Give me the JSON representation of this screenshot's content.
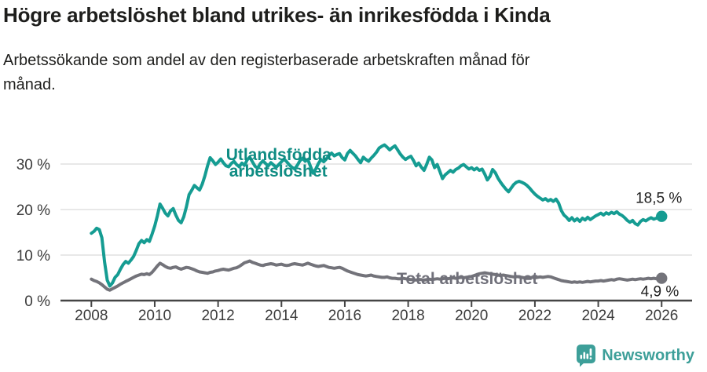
{
  "header": {
    "title": "Högre arbetslöshet bland utrikes- än inrikesfödda i Kinda",
    "subtitle": "Arbetssökande som andel av den registerbaserade arbetskraften månad för månad."
  },
  "footer": {
    "brand": "Newsworthy",
    "brand_color": "#3d9f99",
    "logo_icon": "speech-bubble-with-bar-chart-and-exclamation"
  },
  "chart_data": {
    "type": "line",
    "title": "Högre arbetslöshet bland utrikes- än inrikesfödda i Kinda",
    "subtitle": "Arbetssökande som andel av den registerbaserade arbetskraften månad för månad.",
    "x_axis": {
      "ticks": [
        2008,
        2010,
        2012,
        2014,
        2016,
        2018,
        2020,
        2022,
        2024,
        2026
      ],
      "tick_labels": [
        "2008",
        "2010",
        "2012",
        "2014",
        "2016",
        "2018",
        "2020",
        "2022",
        "2024",
        "2026"
      ],
      "range": [
        2007.0,
        2027.0
      ]
    },
    "y_axis": {
      "unit": "%",
      "ticks": [
        0,
        10,
        20,
        30
      ],
      "tick_labels": [
        "0 %",
        "10 %",
        "20 %",
        "30 %"
      ],
      "range": [
        0,
        34.8
      ],
      "grid": true
    },
    "style": {
      "grid_color": "#dadada",
      "axis_color": "#454545",
      "tick_label_color": "#3b3b3b",
      "end_label_color": "#1f1f1f",
      "line_width": 4
    },
    "series": [
      {
        "id": "utlandsfodda",
        "name": "Utlandsfödda arbetslöshet",
        "color": "#159c92",
        "label_color": "#0f8c83",
        "inline_label": {
          "lines": [
            "Utlandsfödda",
            "arbetslöshet"
          ],
          "year": 2012.25,
          "value": 30.9,
          "line2_dx": 4,
          "line2_hidden_behind_line": true
        },
        "end_value": 18.5,
        "end_label": "18,5 %",
        "end_label_offset": [
          26,
          -17
        ],
        "x_start": 2008,
        "x_step_years": 0.083333,
        "values": [
          14.8,
          15.2,
          15.9,
          15.6,
          13.8,
          8.5,
          4.5,
          3.2,
          3.9,
          5.1,
          5.7,
          6.9,
          7.9,
          8.6,
          8.2,
          8.9,
          9.7,
          11.0,
          12.5,
          13.2,
          12.7,
          13.4,
          13.0,
          14.6,
          16.4,
          18.6,
          21.2,
          20.3,
          19.2,
          18.6,
          19.7,
          20.2,
          18.8,
          17.6,
          17.1,
          18.4,
          20.6,
          23.3,
          24.2,
          25.3,
          24.8,
          24.3,
          25.6,
          27.4,
          29.6,
          31.4,
          30.7,
          29.9,
          30.4,
          31.1,
          30.3,
          29.6,
          29.4,
          30.1,
          30.6,
          29.9,
          29.4,
          30.2,
          29.7,
          30.9,
          31.5,
          30.5,
          29.5,
          29.1,
          30.1,
          30.7,
          30.1,
          29.6,
          30.3,
          29.8,
          29.3,
          29.9,
          30.5,
          31.1,
          30.5,
          29.8,
          29.3,
          28.9,
          29.7,
          30.7,
          31.3,
          30.6,
          31.0,
          29.5,
          28.0,
          28.9,
          30.1,
          31.0,
          30.5,
          31.1,
          31.9,
          32.4,
          31.8,
          32.1,
          32.3,
          31.4,
          30.9,
          32.3,
          33.0,
          32.4,
          31.8,
          31.0,
          30.3,
          31.5,
          31.0,
          30.6,
          31.3,
          31.9,
          32.6,
          33.5,
          33.9,
          34.2,
          33.7,
          33.1,
          33.6,
          34.0,
          33.1,
          32.2,
          31.5,
          31.0,
          31.4,
          31.7,
          30.8,
          29.6,
          30.2,
          29.3,
          28.6,
          29.9,
          31.5,
          30.9,
          29.2,
          29.9,
          28.4,
          26.8,
          27.6,
          28.1,
          28.6,
          28.2,
          28.8,
          29.1,
          29.6,
          29.9,
          29.4,
          28.9,
          29.2,
          28.7,
          29.1,
          28.6,
          28.9,
          27.8,
          26.5,
          27.3,
          28.8,
          28.1,
          26.9,
          26.0,
          25.2,
          24.5,
          23.9,
          24.7,
          25.5,
          26.0,
          26.2,
          26.0,
          25.7,
          25.3,
          24.7,
          24.0,
          23.4,
          22.9,
          22.5,
          22.1,
          22.4,
          21.9,
          22.2,
          21.8,
          22.3,
          21.4,
          19.8,
          18.8,
          18.3,
          17.6,
          18.2,
          17.5,
          18.0,
          17.4,
          18.1,
          17.7,
          18.3,
          17.8,
          18.2,
          18.6,
          18.9,
          19.2,
          18.8,
          19.3,
          19.0,
          19.4,
          19.1,
          19.5,
          19.0,
          18.7,
          18.2,
          17.6,
          17.2,
          17.6,
          16.9,
          16.6,
          17.4,
          17.8,
          17.5,
          17.9,
          18.2,
          17.9,
          18.1,
          18.3,
          18.5
        ]
      },
      {
        "id": "total",
        "name": "Total arbetslöshet",
        "color": "#73737a",
        "label_color": "#70707a",
        "inline_label": {
          "lines": [
            "Total arbetslöshet"
          ],
          "year": 2017.64,
          "value": 3.62,
          "line2_dx": 0,
          "line2_hidden_behind_line": false
        },
        "end_value": 4.9,
        "end_label": "4,9 %",
        "end_label_offset": [
          22,
          23
        ],
        "x_start": 2008,
        "x_step_years": 0.083333,
        "values": [
          4.7,
          4.4,
          4.2,
          3.9,
          3.5,
          3.0,
          2.5,
          2.3,
          2.6,
          2.9,
          3.2,
          3.6,
          3.9,
          4.2,
          4.5,
          4.8,
          5.1,
          5.4,
          5.6,
          5.8,
          5.7,
          5.9,
          5.7,
          6.2,
          6.9,
          7.6,
          8.2,
          7.9,
          7.5,
          7.2,
          7.1,
          7.3,
          7.4,
          7.1,
          6.9,
          7.1,
          7.3,
          7.2,
          7.0,
          6.8,
          6.5,
          6.3,
          6.2,
          6.1,
          6.0,
          6.2,
          6.3,
          6.5,
          6.6,
          6.8,
          6.9,
          6.8,
          6.7,
          6.9,
          7.1,
          7.2,
          7.5,
          7.9,
          8.3,
          8.5,
          8.7,
          8.4,
          8.2,
          8.0,
          7.8,
          7.7,
          7.9,
          8.0,
          8.1,
          8.0,
          7.8,
          7.9,
          8.0,
          7.8,
          7.7,
          7.8,
          8.0,
          8.1,
          8.0,
          7.9,
          7.8,
          8.0,
          8.2,
          8.0,
          7.8,
          7.6,
          7.5,
          7.6,
          7.7,
          7.5,
          7.3,
          7.2,
          7.1,
          7.2,
          7.3,
          7.1,
          6.8,
          6.5,
          6.3,
          6.1,
          5.9,
          5.7,
          5.6,
          5.5,
          5.4,
          5.5,
          5.6,
          5.4,
          5.3,
          5.2,
          5.1,
          5.1,
          5.2,
          5.0,
          4.9,
          4.9,
          4.8,
          4.8,
          4.9,
          4.8,
          4.7,
          4.6,
          4.6,
          4.5,
          4.6,
          4.6,
          4.5,
          4.6,
          4.7,
          4.6,
          4.7,
          4.8,
          4.7,
          4.8,
          4.9,
          4.8,
          4.9,
          5.0,
          4.9,
          5.0,
          5.1,
          5.0,
          5.1,
          5.2,
          5.3,
          5.5,
          5.7,
          5.9,
          6.0,
          6.1,
          6.0,
          5.9,
          5.8,
          5.7,
          5.6,
          5.5,
          5.6,
          5.5,
          5.4,
          5.3,
          5.2,
          5.3,
          5.2,
          5.1,
          5.0,
          5.1,
          5.0,
          5.1,
          5.0,
          5.1,
          5.2,
          5.1,
          5.2,
          5.3,
          5.2,
          5.0,
          4.8,
          4.6,
          4.4,
          4.3,
          4.2,
          4.1,
          4.0,
          4.1,
          4.0,
          4.1,
          4.0,
          4.1,
          4.2,
          4.1,
          4.2,
          4.3,
          4.3,
          4.4,
          4.3,
          4.4,
          4.5,
          4.6,
          4.5,
          4.7,
          4.8,
          4.7,
          4.6,
          4.5,
          4.6,
          4.7,
          4.6,
          4.7,
          4.8,
          4.7,
          4.8,
          4.9,
          4.8,
          4.9,
          4.8,
          4.9,
          4.9
        ]
      }
    ]
  }
}
